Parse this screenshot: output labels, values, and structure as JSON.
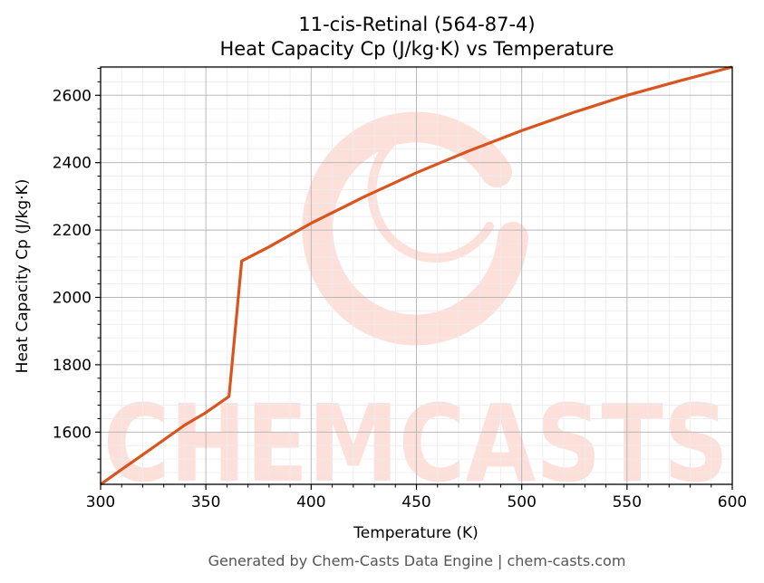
{
  "chart_data": {
    "type": "line",
    "title_line1": "11-cis-Retinal (564-87-4)",
    "title_line2": "Heat Capacity Cp (J/kg·K) vs Temperature",
    "xlabel": "Temperature (K)",
    "ylabel": "Heat Capacity Cp (J/kg·K)",
    "xlim": [
      300,
      600
    ],
    "ylim": [
      1445,
      2684
    ],
    "xticks": [
      300,
      350,
      400,
      450,
      500,
      550,
      600
    ],
    "yticks": [
      1600,
      1800,
      2000,
      2200,
      2400,
      2600
    ],
    "grid": true,
    "series": [
      {
        "color": "#d9541e",
        "x": [
          300,
          310,
          320,
          330,
          340,
          350,
          361,
          367,
          380,
          400,
          425,
          450,
          475,
          500,
          525,
          550,
          575,
          600
        ],
        "y": [
          1445,
          1489,
          1533,
          1577,
          1621,
          1658,
          1706,
          2108,
          2150,
          2220,
          2298,
          2370,
          2435,
          2495,
          2550,
          2600,
          2643,
          2684
        ]
      }
    ]
  },
  "watermark": {
    "text": "CHEMCASTS",
    "color": "#fde0da"
  },
  "footer": "Generated by Chem-Casts Data Engine | chem-casts.com"
}
